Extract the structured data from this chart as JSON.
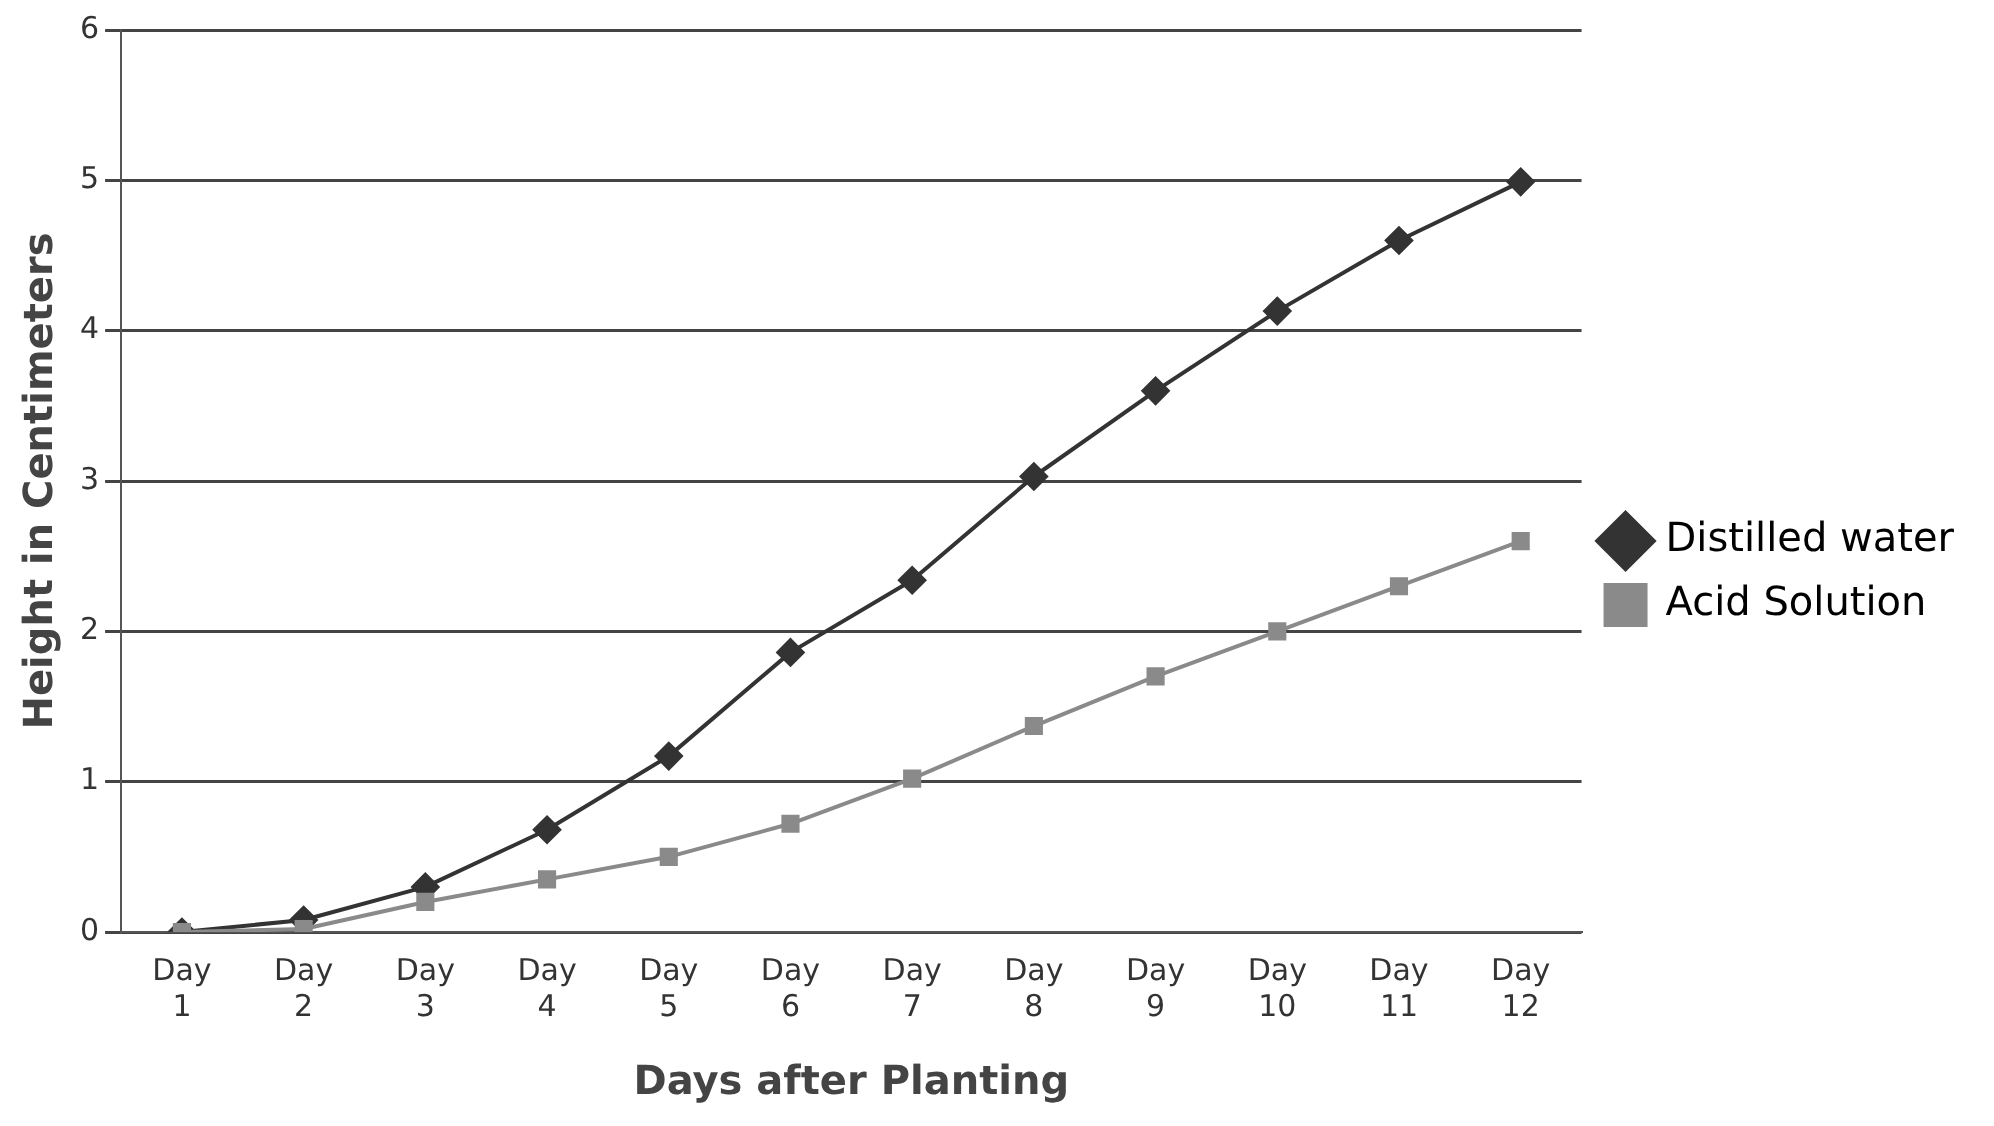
{
  "chart_data": {
    "type": "line",
    "xlabel": "Days after Planting",
    "ylabel": "Height in Centimeters",
    "categories": [
      "Day 1",
      "Day 2",
      "Day 3",
      "Day 4",
      "Day 5",
      "Day 6",
      "Day 7",
      "Day 8",
      "Day 9",
      "Day 10",
      "Day 11",
      "Day 12"
    ],
    "series": [
      {
        "name": "Distilled water",
        "color": "#333333",
        "marker": "diamond",
        "values": [
          0,
          0.08,
          0.3,
          0.68,
          1.17,
          1.86,
          2.34,
          3.03,
          3.6,
          4.13,
          4.6,
          4.99
        ]
      },
      {
        "name": "Acid Solution",
        "color": "#8a8a8a",
        "marker": "square",
        "values": [
          0,
          0.02,
          0.2,
          0.35,
          0.5,
          0.72,
          1.02,
          1.37,
          1.7,
          2.0,
          2.3,
          2.6
        ]
      }
    ],
    "ylim": [
      0,
      6
    ],
    "yticks": [
      0,
      1,
      2,
      3,
      4,
      5,
      6
    ],
    "grid": "y",
    "legend": "right",
    "line_style": "solid"
  }
}
